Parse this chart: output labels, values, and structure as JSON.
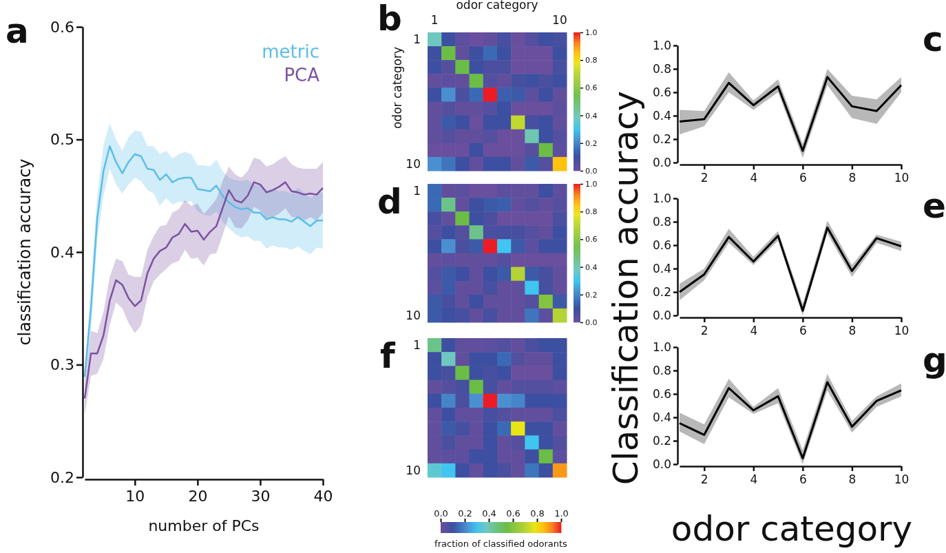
{
  "chart_data": [
    {
      "type": "line",
      "title": "a",
      "xlabel": "number of PCs",
      "ylabel": "classification accuracy",
      "legend": "top right",
      "x": [
        2,
        3,
        4,
        5,
        6,
        7,
        8,
        9,
        10,
        11,
        12,
        13,
        14,
        15,
        16,
        17,
        18,
        19,
        20,
        21,
        22,
        23,
        24,
        25,
        26,
        27,
        28,
        29,
        30,
        31,
        32,
        33,
        34,
        35,
        36,
        37,
        38,
        39,
        40
      ],
      "xlim": [
        2,
        40
      ],
      "xticks": [
        10,
        20,
        30,
        40
      ],
      "ylim": [
        0.2,
        0.6
      ],
      "yticks": [
        0.2,
        0.3,
        0.4,
        0.5,
        0.6
      ],
      "series": [
        {
          "name": "metric",
          "color": "#5bbde8",
          "values": [
            0.289,
            0.35,
            0.43,
            0.472,
            0.494,
            0.48,
            0.47,
            0.48,
            0.487,
            0.485,
            0.474,
            0.473,
            0.464,
            0.469,
            0.462,
            0.465,
            0.466,
            0.466,
            0.456,
            0.455,
            0.454,
            0.459,
            0.45,
            0.444,
            0.44,
            0.438,
            0.439,
            0.435,
            0.435,
            0.429,
            0.431,
            0.429,
            0.429,
            0.427,
            0.431,
            0.427,
            0.423,
            0.428,
            0.428
          ],
          "lower": [
            0.285,
            0.33,
            0.41,
            0.45,
            0.474,
            0.46,
            0.452,
            0.46,
            0.466,
            0.463,
            0.455,
            0.452,
            0.441,
            0.448,
            0.442,
            0.445,
            0.444,
            0.445,
            0.436,
            0.433,
            0.432,
            0.436,
            0.427,
            0.421,
            0.416,
            0.413,
            0.414,
            0.41,
            0.41,
            0.403,
            0.406,
            0.404,
            0.404,
            0.402,
            0.405,
            0.401,
            0.398,
            0.404,
            0.403
          ],
          "upper": [
            0.295,
            0.37,
            0.45,
            0.495,
            0.514,
            0.5,
            0.49,
            0.502,
            0.508,
            0.507,
            0.494,
            0.494,
            0.487,
            0.49,
            0.483,
            0.487,
            0.489,
            0.487,
            0.477,
            0.477,
            0.476,
            0.482,
            0.472,
            0.466,
            0.464,
            0.463,
            0.464,
            0.46,
            0.46,
            0.455,
            0.456,
            0.454,
            0.454,
            0.452,
            0.457,
            0.453,
            0.448,
            0.452,
            0.453
          ]
        },
        {
          "name": "PCA",
          "color": "#7b52a3",
          "values": [
            0.27,
            0.31,
            0.31,
            0.326,
            0.357,
            0.375,
            0.371,
            0.359,
            0.352,
            0.357,
            0.381,
            0.394,
            0.401,
            0.404,
            0.413,
            0.416,
            0.425,
            0.418,
            0.419,
            0.411,
            0.418,
            0.423,
            0.439,
            0.455,
            0.446,
            0.444,
            0.45,
            0.462,
            0.46,
            0.453,
            0.455,
            0.458,
            0.462,
            0.454,
            0.453,
            0.451,
            0.452,
            0.451,
            0.457
          ],
          "lower": [
            0.255,
            0.29,
            0.292,
            0.305,
            0.335,
            0.355,
            0.35,
            0.337,
            0.328,
            0.335,
            0.36,
            0.374,
            0.38,
            0.385,
            0.39,
            0.392,
            0.402,
            0.394,
            0.395,
            0.388,
            0.398,
            0.399,
            0.415,
            0.432,
            0.422,
            0.421,
            0.428,
            0.44,
            0.437,
            0.43,
            0.431,
            0.434,
            0.439,
            0.431,
            0.431,
            0.428,
            0.431,
            0.428,
            0.435
          ],
          "upper": [
            0.285,
            0.33,
            0.328,
            0.347,
            0.378,
            0.394,
            0.392,
            0.38,
            0.378,
            0.378,
            0.402,
            0.414,
            0.423,
            0.424,
            0.435,
            0.438,
            0.446,
            0.441,
            0.443,
            0.434,
            0.44,
            0.447,
            0.463,
            0.476,
            0.469,
            0.466,
            0.472,
            0.484,
            0.482,
            0.476,
            0.478,
            0.482,
            0.485,
            0.478,
            0.475,
            0.474,
            0.474,
            0.474,
            0.48
          ]
        }
      ]
    },
    {
      "type": "heatmap",
      "title": "b",
      "xlabel": "odor category",
      "ylabel": "odor category",
      "cticks": [
        {
          "value": 0,
          "label": "0.0"
        },
        {
          "value": 0.2,
          "label": "0.2"
        },
        {
          "value": 0.4,
          "label": "0.4"
        },
        {
          "value": 0.6,
          "label": "0.6"
        },
        {
          "value": 0.8,
          "label": "0.8"
        },
        {
          "value": 1,
          "label": "1.0"
        }
      ],
      "categories": [
        "1",
        null,
        null,
        null,
        null,
        null,
        null,
        null,
        null,
        "10"
      ],
      "y_categories": [
        "1",
        null,
        null,
        null,
        null,
        null,
        null,
        null,
        null,
        "10"
      ],
      "clim": [
        0,
        1
      ],
      "cells": [
        [
          0.38,
          0.1,
          0.03,
          0,
          0.02,
          0.08,
          0,
          0.05,
          0.1,
          0.08
        ],
        [
          0.1,
          0.55,
          0.02,
          0.1,
          0.15,
          0.1,
          0,
          0,
          0,
          0.1
        ],
        [
          0.1,
          0.05,
          0.55,
          0.1,
          0.07,
          0.07,
          0,
          0,
          0,
          0.08
        ],
        [
          0.02,
          0.03,
          0.02,
          0.55,
          0.05,
          0.02,
          0.08,
          0.1,
          0.07,
          0.1
        ],
        [
          0.1,
          0.22,
          0.07,
          0.15,
          1.0,
          0.13,
          0.12,
          0.03,
          0.1,
          0.02
        ],
        [
          0.02,
          0.05,
          0.02,
          0.02,
          0.05,
          0.1,
          0,
          0,
          0,
          0.03
        ],
        [
          0.02,
          0.12,
          0.1,
          0,
          0.1,
          0.1,
          0.72,
          0.08,
          0.1,
          0.02
        ],
        [
          0.02,
          0.05,
          0.02,
          0.02,
          0.05,
          0,
          0,
          0.4,
          0.1,
          0.05
        ],
        [
          0,
          0,
          0,
          0.1,
          0,
          0,
          0,
          0.05,
          0.55,
          0.03
        ],
        [
          0.22,
          0.17,
          0.1,
          0.02,
          0.1,
          0.1,
          0.02,
          0.12,
          0.05,
          0.85
        ]
      ]
    },
    {
      "type": "line",
      "title": "c",
      "x": [
        1,
        2,
        3,
        4,
        5,
        6,
        7,
        8,
        9,
        10
      ],
      "xlim": [
        1,
        10
      ],
      "xticks": [
        2,
        4,
        6,
        8,
        10
      ],
      "ylim": [
        0,
        1
      ],
      "yticks": [
        {
          "value": 0,
          "label": "0.0"
        },
        {
          "value": 0.2,
          "label": "0.2"
        },
        {
          "value": 0.4,
          "label": "0.4"
        },
        {
          "value": 0.6,
          "label": "0.6"
        },
        {
          "value": 0.8,
          "label": "0.8"
        },
        {
          "value": 1,
          "label": "1.0"
        }
      ],
      "series": [
        {
          "color": "#000000",
          "values": [
            0.35,
            0.37,
            0.68,
            0.49,
            0.65,
            0.1,
            0.73,
            0.48,
            0.44,
            0.66
          ],
          "lower": [
            0.24,
            0.31,
            0.6,
            0.45,
            0.6,
            0.04,
            0.66,
            0.38,
            0.33,
            0.6
          ],
          "upper": [
            0.45,
            0.44,
            0.77,
            0.53,
            0.71,
            0.16,
            0.8,
            0.57,
            0.54,
            0.73
          ]
        }
      ]
    },
    {
      "type": "heatmap",
      "title": "d",
      "tick_labels": "y",
      "cticks": [
        {
          "value": 0,
          "label": "0.0"
        },
        {
          "value": 0.2,
          "label": "0.2"
        },
        {
          "value": 0.4,
          "label": "0.4"
        },
        {
          "value": 0.6,
          "label": "0.6"
        },
        {
          "value": 0.8,
          "label": "0.8"
        },
        {
          "value": 1,
          "label": "1.0"
        }
      ],
      "categories": [
        null,
        null,
        null,
        null,
        null,
        null,
        null,
        null,
        null,
        null
      ],
      "y_categories": [
        "1",
        null,
        null,
        null,
        null,
        null,
        null,
        null,
        null,
        "10"
      ],
      "clim": [
        0,
        1
      ],
      "cells": [
        [
          0.15,
          0.02,
          0.03,
          0,
          0,
          0.03,
          0.02,
          0.02,
          0.1,
          0.03
        ],
        [
          0.15,
          0.45,
          0.02,
          0.1,
          0.12,
          0.13,
          0.02,
          0.05,
          0.02,
          0.05
        ],
        [
          0.08,
          0.02,
          0.55,
          0.1,
          0.07,
          0,
          0,
          0,
          0,
          0.07
        ],
        [
          0.05,
          0.1,
          0.05,
          0.45,
          0.07,
          0.08,
          0.08,
          0.05,
          0.02,
          0.1
        ],
        [
          0.1,
          0.22,
          0.07,
          0.12,
          1.0,
          0.3,
          0.12,
          0.03,
          0.1,
          0.1
        ],
        [
          0.02,
          0.03,
          0.02,
          0.02,
          0.02,
          0.05,
          0,
          0,
          0,
          0
        ],
        [
          0.05,
          0.12,
          0.1,
          0.02,
          0.1,
          0.12,
          0.7,
          0.12,
          0.08,
          0.02
        ],
        [
          0.03,
          0.12,
          0.02,
          0.02,
          0.08,
          0.02,
          0.02,
          0.3,
          0.08,
          0.02
        ],
        [
          0.12,
          0.08,
          0.02,
          0.1,
          0.02,
          0.02,
          0.02,
          0.05,
          0.6,
          0.12
        ],
        [
          0.12,
          0.1,
          0.08,
          0.02,
          0.08,
          0.02,
          0.02,
          0.17,
          0.03,
          0.7
        ]
      ]
    },
    {
      "type": "line",
      "title": "e",
      "ylabel": "Classification accuracy",
      "x": [
        1,
        2,
        3,
        4,
        5,
        6,
        7,
        8,
        9,
        10
      ],
      "xlim": [
        1,
        10
      ],
      "xticks": [
        2,
        4,
        6,
        8,
        10
      ],
      "ylim": [
        0,
        1
      ],
      "yticks": [
        {
          "value": 0,
          "label": "0.0"
        },
        {
          "value": 0.2,
          "label": "0.2"
        },
        {
          "value": 0.4,
          "label": "0.4"
        },
        {
          "value": 0.6,
          "label": "0.6"
        },
        {
          "value": 0.8,
          "label": "0.8"
        },
        {
          "value": 1,
          "label": "1.0"
        }
      ],
      "series": [
        {
          "color": "#000000",
          "values": [
            0.2,
            0.35,
            0.67,
            0.46,
            0.68,
            0.04,
            0.75,
            0.38,
            0.66,
            0.59
          ],
          "lower": [
            0.13,
            0.3,
            0.62,
            0.43,
            0.64,
            0.0,
            0.7,
            0.33,
            0.62,
            0.55
          ],
          "upper": [
            0.27,
            0.4,
            0.74,
            0.5,
            0.72,
            0.1,
            0.81,
            0.43,
            0.69,
            0.63
          ]
        }
      ]
    },
    {
      "type": "heatmap",
      "title": "f",
      "tick_labels": "y",
      "clabel": "fraction of classified odorants",
      "categories": [
        null,
        null,
        null,
        null,
        null,
        null,
        null,
        null,
        null,
        null
      ],
      "y_categories": [
        "1",
        null,
        null,
        null,
        null,
        null,
        null,
        null,
        null,
        "10"
      ],
      "clim": [
        0,
        1
      ],
      "cticks": [
        {
          "value": 0,
          "label": "0.0"
        },
        {
          "value": 0.2,
          "label": "0.2"
        },
        {
          "value": 0.4,
          "label": "0.4"
        },
        {
          "value": 0.6,
          "label": "0.6"
        },
        {
          "value": 0.8,
          "label": "0.8"
        },
        {
          "value": 1,
          "label": "1.0"
        }
      ],
      "cells": [
        [
          0.45,
          0.1,
          0.02,
          0.02,
          0.03,
          0.05,
          0.02,
          0.07,
          0.1,
          0.1
        ],
        [
          0.1,
          0.38,
          0.02,
          0.1,
          0.1,
          0.15,
          0.05,
          0.02,
          0.02,
          0.1
        ],
        [
          0.1,
          0.08,
          0.55,
          0.1,
          0.08,
          0.1,
          0,
          0,
          0,
          0.1
        ],
        [
          0.02,
          0.05,
          0.08,
          0.55,
          0.08,
          0.02,
          0.05,
          0.05,
          0.05,
          0.03
        ],
        [
          0.1,
          0.2,
          0.07,
          0.22,
          1.0,
          0.22,
          0.2,
          0.1,
          0.1,
          0.1
        ],
        [
          0.02,
          0.1,
          0.02,
          0.02,
          0.08,
          0.05,
          0.02,
          0.02,
          0.02,
          0.07
        ],
        [
          0.02,
          0.12,
          0.08,
          0.02,
          0.1,
          0.15,
          0.78,
          0.1,
          0.1,
          0.02
        ],
        [
          0.02,
          0.07,
          0.02,
          0.02,
          0.1,
          0.02,
          0.05,
          0.3,
          0.1,
          0.05
        ],
        [
          0.02,
          0.03,
          0.03,
          0.1,
          0.1,
          0.02,
          0.02,
          0.1,
          0.55,
          0.03
        ],
        [
          0.35,
          0.3,
          0.1,
          0.02,
          0.1,
          0.07,
          0.02,
          0.17,
          0.1,
          0.9
        ]
      ]
    },
    {
      "type": "line",
      "title": "g",
      "xlabel": "odor category",
      "x": [
        1,
        2,
        3,
        4,
        5,
        6,
        7,
        8,
        9,
        10
      ],
      "xlim": [
        1,
        10
      ],
      "xticks": [
        2,
        4,
        6,
        8,
        10
      ],
      "ylim": [
        0,
        1
      ],
      "yticks": [
        {
          "value": 0,
          "label": "0.0"
        },
        {
          "value": 0.2,
          "label": "0.2"
        },
        {
          "value": 0.4,
          "label": "0.4"
        },
        {
          "value": 0.6,
          "label": "0.6"
        },
        {
          "value": 0.8,
          "label": "0.8"
        },
        {
          "value": 1,
          "label": "1.0"
        }
      ],
      "series": [
        {
          "color": "#000000",
          "values": [
            0.35,
            0.25,
            0.65,
            0.46,
            0.58,
            0.05,
            0.7,
            0.32,
            0.54,
            0.63
          ],
          "lower": [
            0.28,
            0.17,
            0.57,
            0.43,
            0.52,
            0.0,
            0.63,
            0.27,
            0.49,
            0.58
          ],
          "upper": [
            0.44,
            0.34,
            0.73,
            0.49,
            0.65,
            0.12,
            0.77,
            0.37,
            0.58,
            0.69
          ]
        }
      ]
    }
  ]
}
